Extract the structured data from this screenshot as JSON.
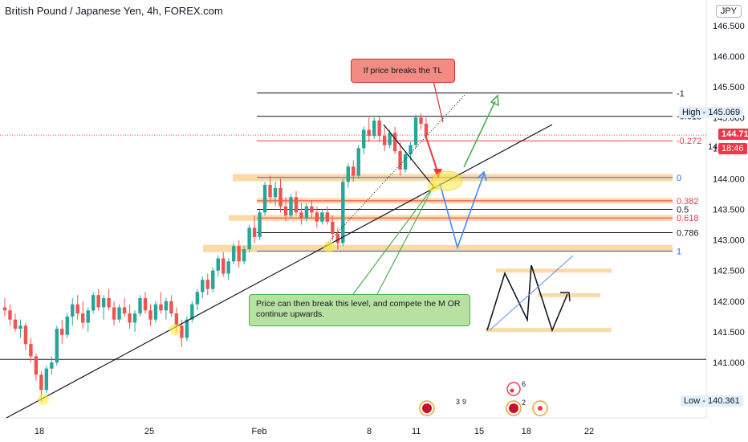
{
  "header": {
    "title": "British Pound / Japanese Yen, 4h, FOREX.com",
    "currency_button": "JPY"
  },
  "annotations": {
    "red_note": "If price breaks the TL",
    "green_note": "Price can then break this level, and compete the M OR continue upwards."
  },
  "price_labels": {
    "high_label": "High",
    "high_value": "145.069",
    "current_price": "144.713",
    "countdown": "18:46",
    "low_label": "Low",
    "low_value": "140.361",
    "partial_tick": "14"
  },
  "event_badges": {
    "count_a": "3",
    "count_b": "9",
    "count_c": "6",
    "count_d": "2"
  },
  "colors": {
    "bull": "#26a69a",
    "bear": "#ef5350",
    "zone": "#fcd296",
    "fib_red": "#f23645",
    "fib_blue": "#2962ff",
    "current_price": "#f23645",
    "axis_badge": "#e3effd"
  },
  "chart_data": {
    "type": "candlestick",
    "title": "British Pound / Japanese Yen, 4h, FOREX.com",
    "y_axis": {
      "ticks": [
        141.0,
        141.5,
        142.0,
        142.5,
        143.0,
        143.5,
        144.0,
        144.5,
        145.0,
        145.5,
        146.0,
        146.5
      ],
      "tick_labels": [
        "141.000",
        "141.500",
        "142.000",
        "142.500",
        "143.000",
        "143.500",
        "144.000",
        "144.500",
        "145.000",
        "145.500",
        "146.000",
        "146.500"
      ],
      "range": [
        140.2,
        146.75
      ],
      "position": "right"
    },
    "x_axis": {
      "tick_labels": [
        "18",
        "25",
        "Feb",
        "8",
        "11",
        "15",
        "18",
        "22"
      ],
      "tick_days": [
        -14,
        -7,
        0,
        7,
        10,
        14,
        17,
        21
      ]
    },
    "grid": false,
    "fib_levels": [
      {
        "label": "-1",
        "price": 145.4,
        "color": "#131722"
      },
      {
        "label": "-0.618",
        "price": 145.02,
        "color": "#131722"
      },
      {
        "label": "-0.272",
        "price": 144.62,
        "color": "#f23645"
      },
      {
        "label": "0",
        "price": 144.02,
        "color": "#2962ff"
      },
      {
        "label": "0.382",
        "price": 143.64,
        "color": "#f23645"
      },
      {
        "label": "0.5",
        "price": 143.5,
        "color": "#131722"
      },
      {
        "label": "0.618",
        "price": 143.36,
        "color": "#f23645"
      },
      {
        "label": "0.786",
        "price": 143.12,
        "color": "#131722"
      },
      {
        "label": "1",
        "price": 142.82,
        "color": "#2962ff"
      }
    ],
    "support_line": 141.05,
    "high": 145.069,
    "low": 140.361,
    "current_price": 144.713,
    "candles": [
      {
        "o": 141.9,
        "h": 142.05,
        "l": 141.75,
        "c": 141.85
      },
      {
        "o": 141.85,
        "h": 141.95,
        "l": 141.6,
        "c": 141.7
      },
      {
        "o": 141.7,
        "h": 141.8,
        "l": 141.5,
        "c": 141.55
      },
      {
        "o": 141.55,
        "h": 141.7,
        "l": 141.4,
        "c": 141.6
      },
      {
        "o": 141.6,
        "h": 141.65,
        "l": 141.2,
        "c": 141.3
      },
      {
        "o": 141.3,
        "h": 141.4,
        "l": 141.0,
        "c": 141.1
      },
      {
        "o": 141.1,
        "h": 141.15,
        "l": 140.7,
        "c": 140.8
      },
      {
        "o": 140.8,
        "h": 140.85,
        "l": 140.36,
        "c": 140.55
      },
      {
        "o": 140.55,
        "h": 140.95,
        "l": 140.5,
        "c": 140.9
      },
      {
        "o": 140.9,
        "h": 141.1,
        "l": 140.8,
        "c": 141.0
      },
      {
        "o": 141.0,
        "h": 141.6,
        "l": 140.95,
        "c": 141.55
      },
      {
        "o": 141.55,
        "h": 141.7,
        "l": 141.3,
        "c": 141.45
      },
      {
        "o": 141.45,
        "h": 141.8,
        "l": 141.4,
        "c": 141.75
      },
      {
        "o": 141.75,
        "h": 142.05,
        "l": 141.6,
        "c": 141.95
      },
      {
        "o": 141.95,
        "h": 142.1,
        "l": 141.7,
        "c": 141.8
      },
      {
        "o": 141.8,
        "h": 142.0,
        "l": 141.55,
        "c": 141.65
      },
      {
        "o": 141.65,
        "h": 141.9,
        "l": 141.5,
        "c": 141.85
      },
      {
        "o": 141.85,
        "h": 142.15,
        "l": 141.8,
        "c": 142.1
      },
      {
        "o": 142.1,
        "h": 142.2,
        "l": 141.85,
        "c": 141.9
      },
      {
        "o": 141.9,
        "h": 142.1,
        "l": 141.7,
        "c": 142.05
      },
      {
        "o": 142.05,
        "h": 142.2,
        "l": 141.85,
        "c": 141.9
      },
      {
        "o": 141.9,
        "h": 142.0,
        "l": 141.6,
        "c": 141.7
      },
      {
        "o": 141.7,
        "h": 141.95,
        "l": 141.65,
        "c": 141.9
      },
      {
        "o": 141.9,
        "h": 142.05,
        "l": 141.75,
        "c": 141.8
      },
      {
        "o": 141.8,
        "h": 141.95,
        "l": 141.55,
        "c": 141.65
      },
      {
        "o": 141.65,
        "h": 141.85,
        "l": 141.5,
        "c": 141.8
      },
      {
        "o": 141.8,
        "h": 142.1,
        "l": 141.75,
        "c": 142.05
      },
      {
        "o": 142.05,
        "h": 142.15,
        "l": 141.8,
        "c": 141.85
      },
      {
        "o": 141.85,
        "h": 141.95,
        "l": 141.6,
        "c": 141.7
      },
      {
        "o": 141.7,
        "h": 142.0,
        "l": 141.65,
        "c": 141.95
      },
      {
        "o": 141.95,
        "h": 142.15,
        "l": 141.8,
        "c": 141.85
      },
      {
        "o": 141.85,
        "h": 142.05,
        "l": 141.7,
        "c": 142.0
      },
      {
        "o": 142.0,
        "h": 142.1,
        "l": 141.75,
        "c": 141.8
      },
      {
        "o": 141.8,
        "h": 141.9,
        "l": 141.5,
        "c": 141.6
      },
      {
        "o": 141.6,
        "h": 141.7,
        "l": 141.25,
        "c": 141.4
      },
      {
        "o": 141.4,
        "h": 141.75,
        "l": 141.35,
        "c": 141.7
      },
      {
        "o": 141.7,
        "h": 142.0,
        "l": 141.65,
        "c": 141.95
      },
      {
        "o": 141.95,
        "h": 142.2,
        "l": 141.85,
        "c": 142.15
      },
      {
        "o": 142.15,
        "h": 142.4,
        "l": 142.05,
        "c": 142.35
      },
      {
        "o": 142.35,
        "h": 142.45,
        "l": 142.1,
        "c": 142.2
      },
      {
        "o": 142.2,
        "h": 142.55,
        "l": 142.15,
        "c": 142.5
      },
      {
        "o": 142.5,
        "h": 142.75,
        "l": 142.4,
        "c": 142.7
      },
      {
        "o": 142.7,
        "h": 142.8,
        "l": 142.4,
        "c": 142.45
      },
      {
        "o": 142.45,
        "h": 142.7,
        "l": 142.35,
        "c": 142.65
      },
      {
        "o": 142.65,
        "h": 142.95,
        "l": 142.6,
        "c": 142.9
      },
      {
        "o": 142.9,
        "h": 143.0,
        "l": 142.55,
        "c": 142.65
      },
      {
        "o": 142.65,
        "h": 142.9,
        "l": 142.6,
        "c": 142.85
      },
      {
        "o": 142.85,
        "h": 143.25,
        "l": 142.8,
        "c": 143.2
      },
      {
        "o": 143.2,
        "h": 143.4,
        "l": 142.95,
        "c": 143.05
      },
      {
        "o": 143.05,
        "h": 143.5,
        "l": 143.0,
        "c": 143.45
      },
      {
        "o": 143.45,
        "h": 143.95,
        "l": 143.4,
        "c": 143.9
      },
      {
        "o": 143.9,
        "h": 144.05,
        "l": 143.6,
        "c": 143.7
      },
      {
        "o": 143.7,
        "h": 143.95,
        "l": 143.55,
        "c": 143.85
      },
      {
        "o": 143.85,
        "h": 144.0,
        "l": 143.45,
        "c": 143.55
      },
      {
        "o": 143.55,
        "h": 143.7,
        "l": 143.3,
        "c": 143.4
      },
      {
        "o": 143.4,
        "h": 143.75,
        "l": 143.35,
        "c": 143.7
      },
      {
        "o": 143.7,
        "h": 143.8,
        "l": 143.4,
        "c": 143.45
      },
      {
        "o": 143.45,
        "h": 143.6,
        "l": 143.25,
        "c": 143.35
      },
      {
        "o": 143.35,
        "h": 143.6,
        "l": 143.3,
        "c": 143.55
      },
      {
        "o": 143.55,
        "h": 143.65,
        "l": 143.35,
        "c": 143.45
      },
      {
        "o": 143.45,
        "h": 143.55,
        "l": 143.2,
        "c": 143.3
      },
      {
        "o": 143.3,
        "h": 143.5,
        "l": 143.25,
        "c": 143.45
      },
      {
        "o": 143.45,
        "h": 143.55,
        "l": 143.25,
        "c": 143.3
      },
      {
        "o": 143.3,
        "h": 143.4,
        "l": 143.0,
        "c": 143.1
      },
      {
        "o": 143.1,
        "h": 143.2,
        "l": 142.85,
        "c": 142.95
      },
      {
        "o": 142.95,
        "h": 144.0,
        "l": 142.9,
        "c": 143.95
      },
      {
        "o": 143.95,
        "h": 144.25,
        "l": 143.85,
        "c": 144.2
      },
      {
        "o": 144.2,
        "h": 144.3,
        "l": 143.95,
        "c": 144.05
      },
      {
        "o": 144.05,
        "h": 144.55,
        "l": 144.0,
        "c": 144.5
      },
      {
        "o": 144.5,
        "h": 144.85,
        "l": 144.4,
        "c": 144.8
      },
      {
        "o": 144.8,
        "h": 145.0,
        "l": 144.6,
        "c": 144.7
      },
      {
        "o": 144.7,
        "h": 145.0,
        "l": 144.65,
        "c": 144.95
      },
      {
        "o": 144.95,
        "h": 145.02,
        "l": 144.6,
        "c": 144.7
      },
      {
        "o": 144.7,
        "h": 144.85,
        "l": 144.45,
        "c": 144.55
      },
      {
        "o": 144.55,
        "h": 144.8,
        "l": 144.5,
        "c": 144.75
      },
      {
        "o": 144.75,
        "h": 144.85,
        "l": 144.4,
        "c": 144.45
      },
      {
        "o": 144.45,
        "h": 144.6,
        "l": 144.05,
        "c": 144.15
      },
      {
        "o": 144.15,
        "h": 144.45,
        "l": 144.1,
        "c": 144.4
      },
      {
        "o": 144.4,
        "h": 144.6,
        "l": 144.3,
        "c": 144.55
      },
      {
        "o": 144.55,
        "h": 145.05,
        "l": 144.5,
        "c": 145.0
      },
      {
        "o": 145.0,
        "h": 145.07,
        "l": 144.8,
        "c": 144.9
      },
      {
        "o": 144.9,
        "h": 145.0,
        "l": 144.65,
        "c": 144.71
      }
    ]
  }
}
